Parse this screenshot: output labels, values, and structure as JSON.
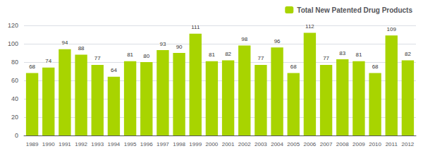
{
  "chart_data": {
    "type": "bar",
    "categories": [
      "1989",
      "1990",
      "1991",
      "1992",
      "1993",
      "1994",
      "1995",
      "1996",
      "1997",
      "1998",
      "1999",
      "2000",
      "2001",
      "2002",
      "2003",
      "2004",
      "2005",
      "2006",
      "2007",
      "2008",
      "2009",
      "2010",
      "2011",
      "2012"
    ],
    "series": [
      {
        "name": "Total New Patented Drug Products",
        "color": "#a8d400",
        "values": [
          68,
          74,
          94,
          88,
          77,
          64,
          81,
          80,
          93,
          90,
          111,
          81,
          82,
          98,
          77,
          96,
          68,
          112,
          77,
          83,
          81,
          68,
          109,
          82
        ]
      }
    ],
    "ylim": [
      0,
      120
    ],
    "yticks": [
      0,
      20,
      40,
      60,
      80,
      100,
      120
    ],
    "grid": true,
    "data_labels": true,
    "legend": "upper right"
  }
}
